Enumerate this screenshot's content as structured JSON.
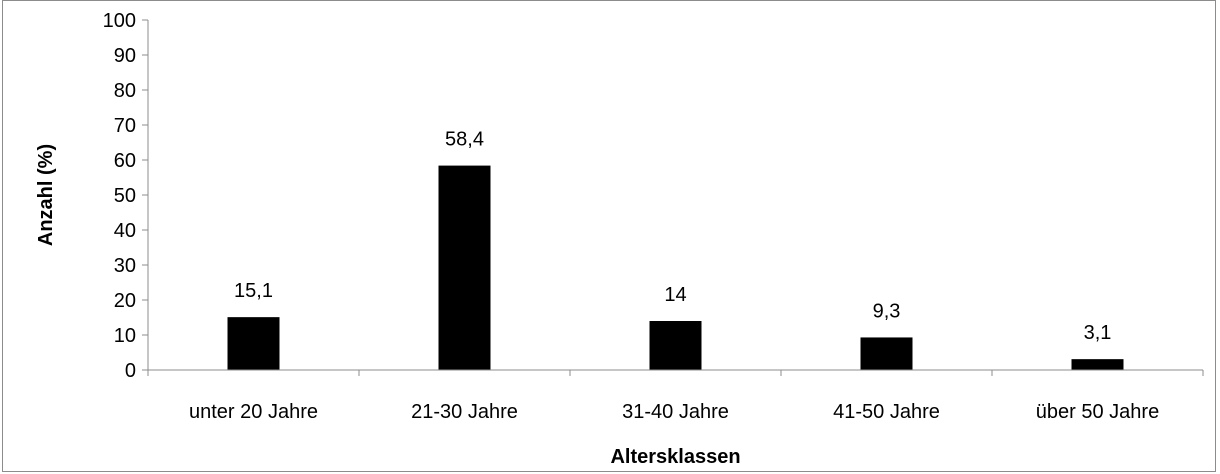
{
  "chart_data": {
    "type": "bar",
    "title": "",
    "xlabel": "Altersklassen",
    "ylabel": "Anzahl (%)",
    "categories": [
      "unter 20 Jahre",
      "21-30 Jahre",
      "31-40 Jahre",
      "41-50 Jahre",
      "über 50 Jahre"
    ],
    "values": [
      15.1,
      58.4,
      14,
      9.3,
      3.1
    ],
    "data_labels": [
      "15,1",
      "58,4",
      "14",
      "9,3",
      "3,1"
    ],
    "ylim": [
      0,
      100
    ],
    "yticks": [
      0,
      10,
      20,
      30,
      40,
      50,
      60,
      70,
      80,
      90,
      100
    ],
    "grid": false,
    "legend": "none",
    "bar_color": "#000000",
    "axis_color": "#8c8c8c"
  }
}
